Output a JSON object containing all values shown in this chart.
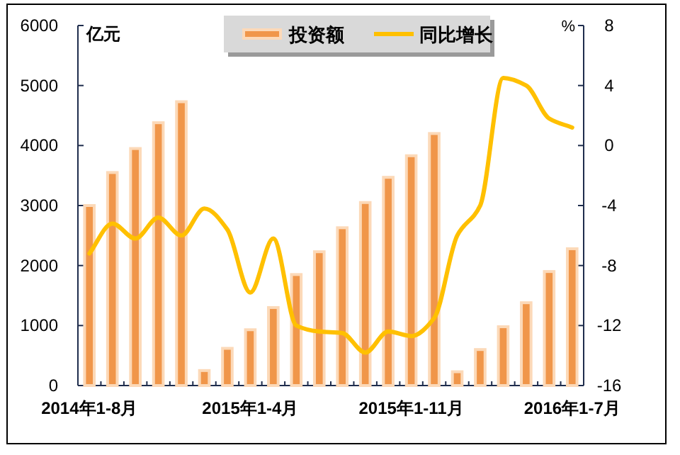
{
  "chart_data": {
    "type": "bar",
    "ylabel": "亿元",
    "y2label": "%",
    "categories": [
      "2014年1-8月",
      null,
      null,
      null,
      null,
      null,
      null,
      "2015年1-4月",
      null,
      null,
      null,
      null,
      null,
      null,
      "2015年1-11月",
      null,
      null,
      null,
      null,
      null,
      null,
      "2016年1-7月"
    ],
    "series": [
      {
        "name": "投资额",
        "color": "#f0964a",
        "values": [
          3000,
          3550,
          3950,
          4380,
          4730,
          250,
          620,
          930,
          1300,
          1850,
          2230,
          2630,
          3050,
          3470,
          3830,
          4200,
          230,
          600,
          980,
          1380,
          1900,
          2280
        ]
      },
      {
        "name": "同比增长",
        "type": "line",
        "axis": "y2",
        "color": "#ffc000",
        "values": [
          -7.2,
          -5.2,
          -6.2,
          -4.8,
          -6,
          -4.2,
          -5.6,
          -9.8,
          -6.2,
          -12,
          -12.4,
          -12.5,
          -13.8,
          -12.4,
          -12.7,
          -11.5,
          -6,
          -4,
          4.5,
          4,
          1.8,
          1.2
        ]
      }
    ],
    "ylim": [
      0,
      6000
    ],
    "yticks": [
      0,
      1000,
      2000,
      3000,
      4000,
      5000,
      6000
    ],
    "y2lim": [
      -16,
      8
    ],
    "y2ticks": [
      -16,
      -12,
      -8,
      -4,
      0,
      4,
      8
    ],
    "grid": false,
    "legend": "top"
  }
}
